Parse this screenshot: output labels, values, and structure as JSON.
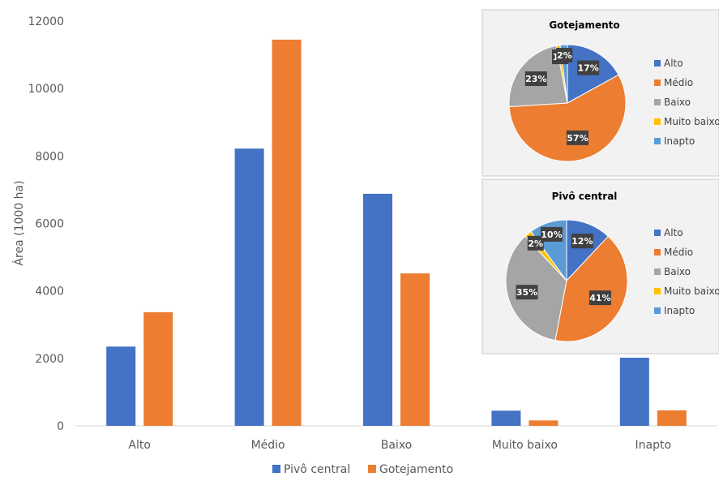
{
  "chart_data": [
    {
      "type": "bar",
      "ylabel": "Área (1000 ha)",
      "ylim": [
        0,
        12000
      ],
      "yticks": [
        0,
        2000,
        4000,
        6000,
        8000,
        10000,
        12000
      ],
      "categories": [
        "Alto",
        "Médio",
        "Baixo",
        "Muito baixo",
        "Inapto"
      ],
      "series": [
        {
          "name": "Pivô central",
          "color": "#4472C4",
          "values": [
            2350,
            8220,
            6880,
            450,
            2020
          ]
        },
        {
          "name": "Gotejamento",
          "color": "#ED7D31",
          "values": [
            3370,
            11450,
            4520,
            160,
            460
          ]
        }
      ],
      "legend": "bottom",
      "grid": false
    },
    {
      "type": "pie",
      "title": "Gotejamento",
      "categories": [
        "Alto",
        "Médio",
        "Baixo",
        "Muito baixo",
        "Inapto"
      ],
      "values": [
        17,
        57,
        23,
        1,
        2
      ],
      "labels": [
        "17%",
        "57%",
        "23%",
        "1%",
        "2%"
      ],
      "colors": [
        "#4472C4",
        "#ED7D31",
        "#A5A5A5",
        "#FFC000",
        "#5B9BD5"
      ],
      "legend": "right"
    },
    {
      "type": "pie",
      "title": "Pivô central",
      "categories": [
        "Alto",
        "Médio",
        "Baixo",
        "Muito baixo",
        "Inapto"
      ],
      "values": [
        12,
        41,
        35,
        2,
        10
      ],
      "labels": [
        "12%",
        "41%",
        "35%",
        "2%",
        "10%"
      ],
      "colors": [
        "#4472C4",
        "#ED7D31",
        "#A5A5A5",
        "#FFC000",
        "#5B9BD5"
      ],
      "legend": "right"
    }
  ]
}
